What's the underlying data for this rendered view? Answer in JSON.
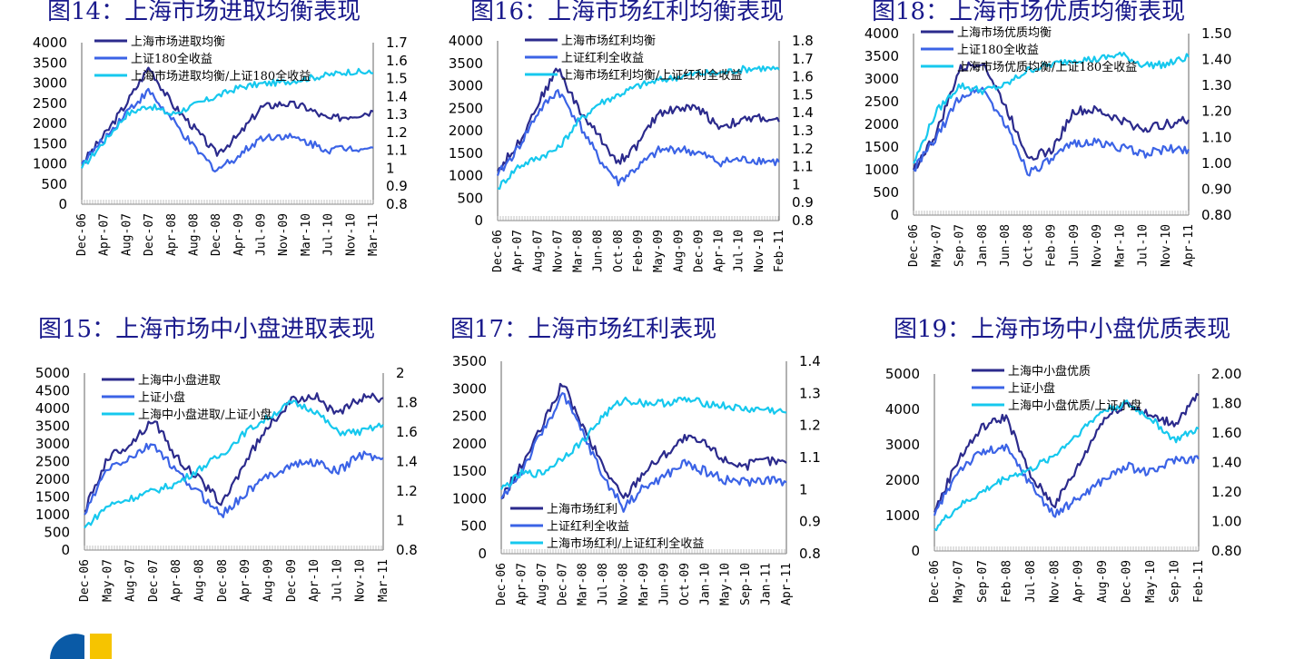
{
  "colors": {
    "dark": "#2b2a8c",
    "mid": "#3b63e6",
    "light": "#16c8ee",
    "title": "#1a1a8c"
  },
  "chart_data": [
    {
      "type": "line",
      "title": "图14：上海市场进取均衡表现",
      "x_ticks": [
        "Dec-06",
        "Apr-07",
        "Aug-07",
        "Dec-07",
        "Apr-08",
        "Aug-08",
        "Dec-08",
        "Apr-09",
        "Jul-09",
        "Nov-09",
        "Mar-10",
        "Jul-10",
        "Nov-10",
        "Mar-11"
      ],
      "yleft_ticks": [
        "0",
        "500",
        "1000",
        "1500",
        "2000",
        "2500",
        "3000",
        "3500",
        "4000"
      ],
      "yright_ticks": [
        "0.8",
        "0.9",
        "1",
        "1.1",
        "1.2",
        "1.3",
        "1.4",
        "1.5",
        "1.6",
        "1.7"
      ],
      "ylim_left": [
        0,
        4000
      ],
      "ylim_right": [
        0.8,
        1.7
      ],
      "legend_position": "top-left",
      "series": [
        {
          "name": "上海市场进取均衡",
          "axis": "left",
          "color": "dark",
          "values": [
            1000,
            1700,
            2500,
            3400,
            2500,
            1900,
            1250,
            1700,
            2400,
            2500,
            2400,
            2100,
            2200,
            2300
          ]
        },
        {
          "name": "上证180全收益",
          "axis": "left",
          "color": "mid",
          "values": [
            1000,
            1600,
            2300,
            2800,
            2100,
            1400,
            850,
            1200,
            1650,
            1700,
            1550,
            1350,
            1400,
            1400
          ]
        },
        {
          "name": "上海市场进取均衡/上证180全收益",
          "axis": "right",
          "color": "light",
          "values": [
            1.0,
            1.15,
            1.3,
            1.35,
            1.3,
            1.35,
            1.4,
            1.45,
            1.47,
            1.48,
            1.5,
            1.52,
            1.54,
            1.53
          ]
        }
      ]
    },
    {
      "type": "line",
      "title": "图16：上海市场红利均衡表现",
      "x_ticks": [
        "Dec-06",
        "Apr-07",
        "Aug-07",
        "Nov-07",
        "Mar-08",
        "Jun-08",
        "Oct-08",
        "Feb-09",
        "May-09",
        "Aug-09",
        "Dec-09",
        "Apr-10",
        "Jul-10",
        "Nov-10",
        "Feb-11"
      ],
      "yleft_ticks": [
        "0",
        "500",
        "1000",
        "1500",
        "2000",
        "2500",
        "3000",
        "3500",
        "4000"
      ],
      "yright_ticks": [
        "0.8",
        "0.9",
        "1",
        "1.1",
        "1.2",
        "1.3",
        "1.4",
        "1.5",
        "1.6",
        "1.7",
        "1.8"
      ],
      "ylim_left": [
        0,
        4000
      ],
      "ylim_right": [
        0.8,
        1.8
      ],
      "legend_position": "top-left",
      "series": [
        {
          "name": "上海市场红利均衡",
          "axis": "left",
          "color": "dark",
          "values": [
            1100,
            1700,
            2600,
            3400,
            2500,
            1900,
            1300,
            1700,
            2400,
            2500,
            2500,
            2100,
            2200,
            2300,
            2200
          ]
        },
        {
          "name": "上证红利全收益",
          "axis": "left",
          "color": "mid",
          "values": [
            1000,
            1600,
            2400,
            2900,
            2200,
            1400,
            850,
            1200,
            1550,
            1600,
            1500,
            1300,
            1350,
            1350,
            1300
          ]
        },
        {
          "name": "上海市场红利均衡/上证红利全收益",
          "axis": "right",
          "color": "light",
          "values": [
            0.98,
            1.1,
            1.15,
            1.2,
            1.35,
            1.45,
            1.5,
            1.55,
            1.58,
            1.6,
            1.62,
            1.62,
            1.64,
            1.65,
            1.64
          ]
        }
      ]
    },
    {
      "type": "line",
      "title": "图18：上海市场优质均衡表现",
      "x_ticks": [
        "Dec-06",
        "May-07",
        "Sep-07",
        "Jan-08",
        "Jun-08",
        "Oct-08",
        "Feb-09",
        "Jun-09",
        "Nov-09",
        "Mar-10",
        "Jul-10",
        "Nov-10",
        "Apr-11"
      ],
      "yleft_ticks": [
        "0",
        "500",
        "1000",
        "1500",
        "2000",
        "2500",
        "3000",
        "3500",
        "4000"
      ],
      "yright_ticks": [
        "0.80",
        "0.90",
        "1.00",
        "1.10",
        "1.20",
        "1.30",
        "1.40",
        "1.50"
      ],
      "ylim_left": [
        0,
        4000
      ],
      "ylim_right": [
        0.8,
        1.5
      ],
      "legend_position": "top-left",
      "series": [
        {
          "name": "上海市场优质均衡",
          "axis": "left",
          "color": "dark",
          "values": [
            1000,
            1800,
            3200,
            3400,
            2400,
            1300,
            1400,
            2300,
            2300,
            2100,
            1900,
            2000,
            2100
          ]
        },
        {
          "name": "上证180全收益",
          "axis": "left",
          "color": "mid",
          "values": [
            1000,
            1700,
            2600,
            2800,
            2000,
            950,
            1200,
            1600,
            1600,
            1500,
            1350,
            1450,
            1450
          ]
        },
        {
          "name": "上海市场优质均衡/上证180全收益",
          "axis": "right",
          "color": "light",
          "values": [
            1.0,
            1.2,
            1.3,
            1.28,
            1.3,
            1.36,
            1.38,
            1.4,
            1.4,
            1.42,
            1.38,
            1.38,
            1.41
          ]
        }
      ]
    },
    {
      "type": "line",
      "title": "图15：上海市场中小盘进取表现",
      "x_ticks": [
        "Dec-06",
        "May-07",
        "Aug-07",
        "Dec-07",
        "Apr-08",
        "Aug-08",
        "Dec-08",
        "Apr-09",
        "Aug-09",
        "Dec-09",
        "Apr-10",
        "Jul-10",
        "Nov-10",
        "Mar-11"
      ],
      "yleft_ticks": [
        "0",
        "500",
        "1000",
        "1500",
        "2000",
        "2500",
        "3000",
        "3500",
        "4000",
        "4500",
        "5000"
      ],
      "yright_ticks": [
        "0.8",
        "1",
        "1.2",
        "1.4",
        "1.6",
        "1.8",
        "2"
      ],
      "ylim_left": [
        0,
        5000
      ],
      "ylim_right": [
        0.8,
        2.0
      ],
      "legend_position": "top-left",
      "series": [
        {
          "name": "上海中小盘进取",
          "axis": "left",
          "color": "dark",
          "values": [
            1100,
            2600,
            3000,
            3700,
            2600,
            2000,
            1300,
            2500,
            3500,
            4200,
            4400,
            3800,
            4300,
            4300
          ]
        },
        {
          "name": "上证小盘",
          "axis": "left",
          "color": "mid",
          "values": [
            1000,
            2300,
            2600,
            3000,
            2200,
            1600,
            1000,
            1600,
            2100,
            2400,
            2500,
            2200,
            2700,
            2600
          ]
        },
        {
          "name": "上海中小盘进取/上证小盘",
          "axis": "right",
          "color": "light",
          "values": [
            0.95,
            1.1,
            1.15,
            1.2,
            1.25,
            1.35,
            1.45,
            1.6,
            1.7,
            1.8,
            1.75,
            1.6,
            1.6,
            1.65
          ]
        }
      ]
    },
    {
      "type": "line",
      "title": "图17：上海市场红利表现",
      "x_ticks": [
        "Dec-06",
        "Apr-07",
        "Aug-07",
        "Dec-07",
        "Mar-08",
        "Jul-08",
        "Nov-08",
        "Mar-09",
        "Jun-09",
        "Oct-09",
        "Jan-10",
        "May-10",
        "Sep-10",
        "Jan-11",
        "Apr-11"
      ],
      "yleft_ticks": [
        "0",
        "500",
        "1000",
        "1500",
        "2000",
        "2500",
        "3000",
        "3500"
      ],
      "yright_ticks": [
        "0.8",
        "0.9",
        "1",
        "1.1",
        "1.2",
        "1.3",
        "1.4"
      ],
      "ylim_left": [
        0,
        3500
      ],
      "ylim_right": [
        0.8,
        1.4
      ],
      "legend_position": "bottom-left",
      "series": [
        {
          "name": "上海市场红利",
          "axis": "left",
          "color": "dark",
          "values": [
            1000,
            1600,
            2300,
            3100,
            2300,
            1600,
            1000,
            1500,
            1800,
            2100,
            2000,
            1700,
            1600,
            1700,
            1650
          ]
        },
        {
          "name": "上证红利全收益",
          "axis": "left",
          "color": "mid",
          "values": [
            1000,
            1500,
            2200,
            2900,
            2200,
            1400,
            850,
            1200,
            1400,
            1650,
            1500,
            1350,
            1300,
            1350,
            1300
          ]
        },
        {
          "name": "上海市场红利/上证红利全收益",
          "axis": "right",
          "color": "light",
          "values": [
            1.0,
            1.05,
            1.05,
            1.1,
            1.15,
            1.23,
            1.28,
            1.27,
            1.27,
            1.28,
            1.27,
            1.26,
            1.25,
            1.25,
            1.24
          ]
        }
      ]
    },
    {
      "type": "line",
      "title": "图19：上海市场中小盘优质表现",
      "x_ticks": [
        "Dec-06",
        "May-07",
        "Sep-07",
        "Feb-08",
        "Jul-08",
        "Nov-08",
        "Apr-09",
        "Aug-09",
        "Dec-09",
        "May-10",
        "Sep-10",
        "Feb-11"
      ],
      "yleft_ticks": [
        "0",
        "1000",
        "2000",
        "3000",
        "4000",
        "5000"
      ],
      "yright_ticks": [
        "0.80",
        "1.00",
        "1.20",
        "1.40",
        "1.60",
        "1.80",
        "2.00"
      ],
      "ylim_left": [
        0,
        5000
      ],
      "ylim_right": [
        0.8,
        2.0
      ],
      "legend_position": "top-left",
      "series": [
        {
          "name": "上海中小盘优质",
          "axis": "left",
          "color": "dark",
          "values": [
            1100,
            2600,
            3500,
            3800,
            2100,
            1300,
            2400,
            3700,
            4200,
            3800,
            3600,
            4400
          ]
        },
        {
          "name": "上证小盘",
          "axis": "left",
          "color": "mid",
          "values": [
            1000,
            2300,
            2800,
            2900,
            1900,
            1000,
            1500,
            2000,
            2400,
            2200,
            2600,
            2600
          ]
        },
        {
          "name": "上海中小盘优质/上证小盘",
          "axis": "right",
          "color": "light",
          "values": [
            0.95,
            1.1,
            1.2,
            1.3,
            1.35,
            1.45,
            1.6,
            1.75,
            1.8,
            1.7,
            1.55,
            1.63
          ]
        }
      ]
    }
  ]
}
